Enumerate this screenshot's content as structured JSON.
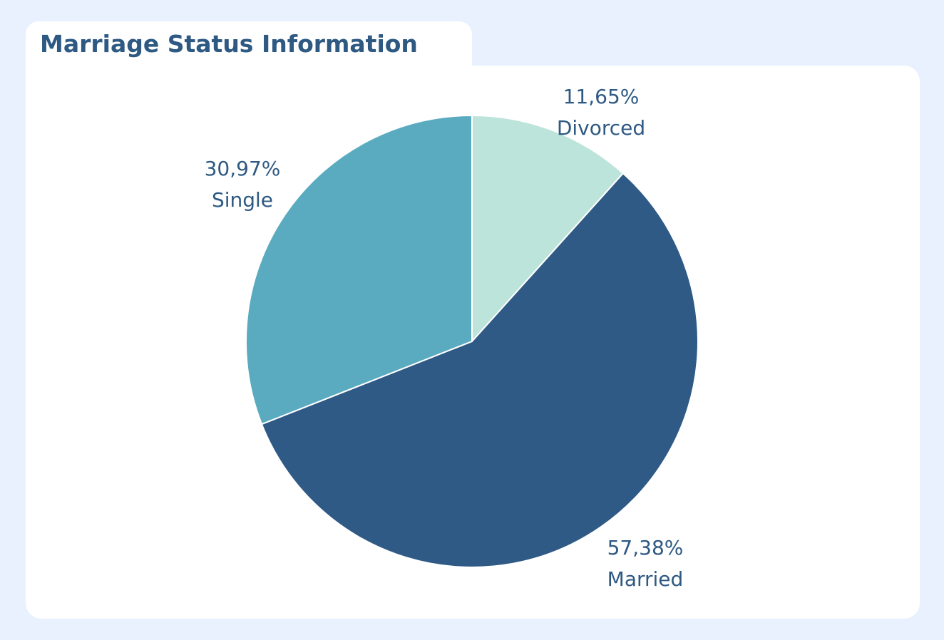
{
  "chart_data": {
    "type": "pie",
    "title": "Marriage Status Information",
    "slices": [
      {
        "label": "Divorced",
        "value": 11.65,
        "value_label": "11,65%",
        "color": "#bce4da"
      },
      {
        "label": "Married",
        "value": 57.38,
        "value_label": "57,38%",
        "color": "#2e5a85"
      },
      {
        "label": "Single",
        "value": 30.97,
        "value_label": "30,97%",
        "color": "#5babc0"
      }
    ]
  },
  "colors": {
    "background": "#e8f1fd",
    "panel": "#ffffff",
    "text": "#2e5982"
  }
}
